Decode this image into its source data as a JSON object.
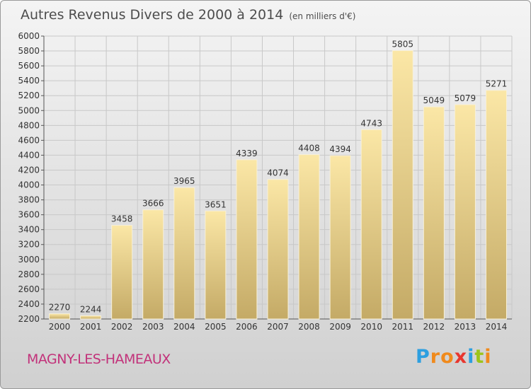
{
  "title": "Autres Revenus Divers de 2000 à 2014",
  "unit_note": "(en milliers d'€)",
  "city": "MAGNY-LES-HAMEAUX",
  "logo": {
    "letters": [
      "P",
      "r",
      "o",
      "x",
      "i",
      "t",
      "i"
    ],
    "colors": [
      "#2d9fe0",
      "#f08a1c",
      "#f08a1c",
      "#e8362e",
      "#2d9fe0",
      "#9cc41a",
      "#f08a1c"
    ]
  },
  "colors": {
    "bar_light": "#fbe7a6",
    "bar_dark": "#c4aa66",
    "grid": "#c8c8c8",
    "text": "#333333"
  },
  "chart_data": {
    "type": "bar",
    "categories": [
      "2000",
      "2001",
      "2002",
      "2003",
      "2004",
      "2005",
      "2006",
      "2007",
      "2008",
      "2009",
      "2010",
      "2011",
      "2012",
      "2013",
      "2014"
    ],
    "values": [
      2270,
      2244,
      3458,
      3666,
      3965,
      3651,
      4339,
      4074,
      4408,
      4394,
      4743,
      5805,
      5049,
      5079,
      5271
    ],
    "ylim": [
      2200,
      6000
    ],
    "yticks": [
      2200,
      2400,
      2600,
      2800,
      3000,
      3200,
      3400,
      3600,
      3800,
      4000,
      4200,
      4400,
      4600,
      4800,
      5000,
      5200,
      5400,
      5600,
      5800,
      6000
    ],
    "grid": true
  }
}
